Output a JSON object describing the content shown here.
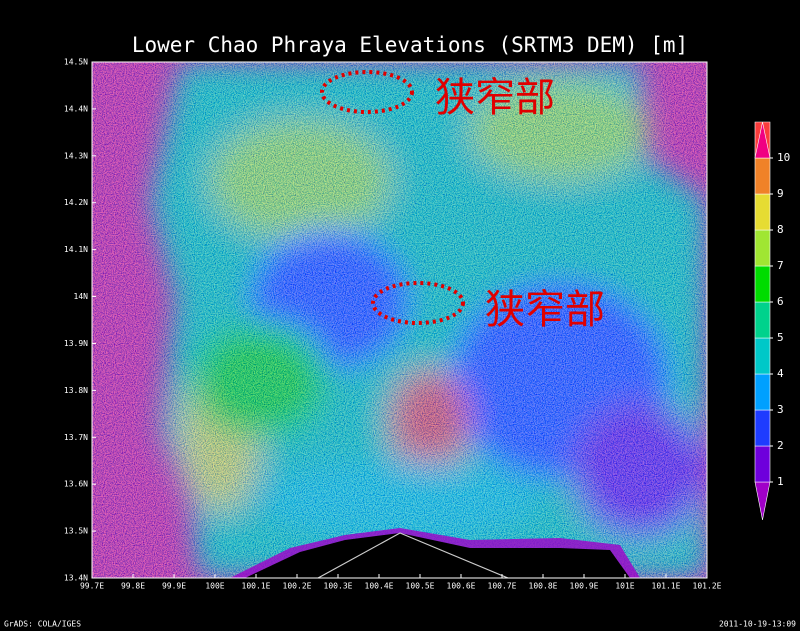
{
  "chart_data": {
    "type": "raster-map",
    "title": "Lower Chao Phraya Elevations (SRTM3 DEM) [m]",
    "xlim": [
      99.7,
      101.2
    ],
    "ylim": [
      13.4,
      14.5
    ],
    "xticks": [
      {
        "value": 99.7,
        "label": "99.7E"
      },
      {
        "value": 99.8,
        "label": "99.8E"
      },
      {
        "value": 99.9,
        "label": "99.9E"
      },
      {
        "value": 100,
        "label": "100E"
      },
      {
        "value": 100.1,
        "label": "100.1E"
      },
      {
        "value": 100.2,
        "label": "100.2E"
      },
      {
        "value": 100.3,
        "label": "100.3E"
      },
      {
        "value": 100.4,
        "label": "100.4E"
      },
      {
        "value": 100.5,
        "label": "100.5E"
      },
      {
        "value": 100.6,
        "label": "100.6E"
      },
      {
        "value": 100.7,
        "label": "100.7E"
      },
      {
        "value": 100.8,
        "label": "100.8E"
      },
      {
        "value": 100.9,
        "label": "100.9E"
      },
      {
        "value": 101,
        "label": "101E"
      },
      {
        "value": 101.1,
        "label": "101.1E"
      },
      {
        "value": 101.2,
        "label": "101.2E"
      }
    ],
    "yticks": [
      {
        "value": 13.4,
        "label": "13.4N"
      },
      {
        "value": 13.5,
        "label": "13.5N"
      },
      {
        "value": 13.6,
        "label": "13.6N"
      },
      {
        "value": 13.7,
        "label": "13.7N"
      },
      {
        "value": 13.8,
        "label": "13.8N"
      },
      {
        "value": 13.9,
        "label": "13.9N"
      },
      {
        "value": 14,
        "label": "14N"
      },
      {
        "value": 14.1,
        "label": "14.1N"
      },
      {
        "value": 14.2,
        "label": "14.2N"
      },
      {
        "value": 14.3,
        "label": "14.3N"
      },
      {
        "value": 14.4,
        "label": "14.4N"
      },
      {
        "value": 14.5,
        "label": "14.5N"
      }
    ],
    "colorbar": {
      "levels": [
        1,
        2,
        3,
        4,
        5,
        6,
        7,
        8,
        9,
        10
      ],
      "colors": [
        "#a000c8",
        "#6e00dc",
        "#1e3cff",
        "#00a0ff",
        "#00c8c8",
        "#00d28c",
        "#00dc00",
        "#a0e632",
        "#e6dc32",
        "#f08228",
        "#fa3c3c",
        "#f00082"
      ]
    },
    "annotations": [
      "狭窄部",
      "狭窄部"
    ],
    "footer_left": "GrADS: COLA/IGES",
    "footer_right": "2011-10-19-13:09"
  }
}
